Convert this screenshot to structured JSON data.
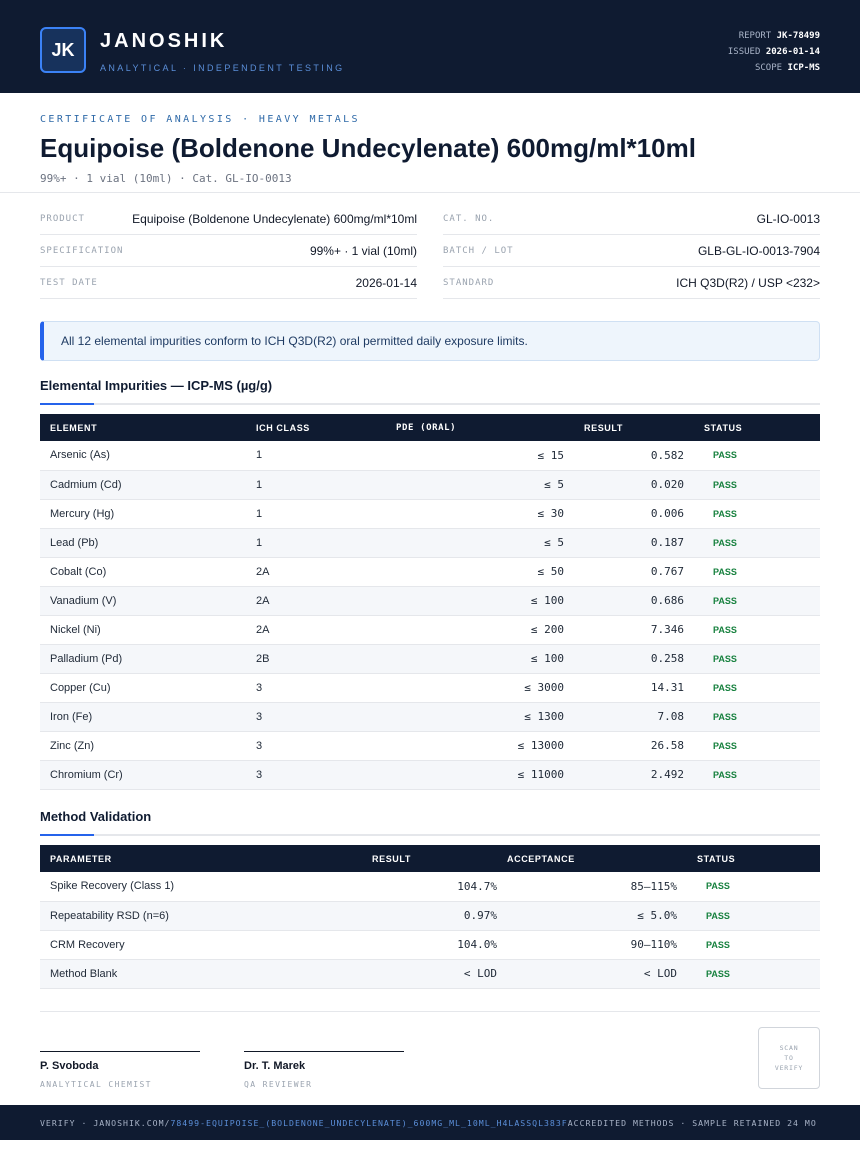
{
  "header": {
    "logo": "JK",
    "brand": "JANOSHIK",
    "tagline": "ANALYTICAL · INDEPENDENT TESTING",
    "report_label": "REPORT",
    "report_value": "JK-78499",
    "issued_label": "ISSUED",
    "issued_value": "2026-01-14",
    "scope_label": "SCOPE",
    "scope_value": "ICP-MS"
  },
  "doc": {
    "eyebrow": "CERTIFICATE OF ANALYSIS · HEAVY METALS",
    "title": "Equipoise (Boldenone Undecylenate) 600mg/ml*10ml",
    "subtitle": "99%+ · 1 vial (10ml)  ·  Cat. GL-IO-0013"
  },
  "info_left": [
    {
      "label": "PRODUCT",
      "value": "Equipoise (Boldenone Undecylenate) 600mg/ml*10ml"
    },
    {
      "label": "SPECIFICATION",
      "value": "99%+ · 1 vial (10ml)"
    },
    {
      "label": "TEST DATE",
      "value": "2026-01-14"
    }
  ],
  "info_right": [
    {
      "label": "CAT. NO.",
      "value": "GL-IO-0013"
    },
    {
      "label": "BATCH / LOT",
      "value": "GLB-GL-IO-0013-7904"
    },
    {
      "label": "STANDARD",
      "value": "ICH Q3D(R2) / USP <232>"
    }
  ],
  "notice": "All 12 elemental impurities conform to ICH Q3D(R2) oral permitted daily exposure limits.",
  "impurities": {
    "heading": "Elemental Impurities — ICP-MS (µg/g)",
    "columns": [
      "ELEMENT",
      "ICH CLASS",
      "PDE (ORAL)",
      "RESULT",
      "STATUS"
    ],
    "rows": [
      {
        "element": "Arsenic (As)",
        "class": "1",
        "pde": "≤ 15",
        "result": "0.582",
        "status": "PASS"
      },
      {
        "element": "Cadmium (Cd)",
        "class": "1",
        "pde": "≤ 5",
        "result": "0.020",
        "status": "PASS"
      },
      {
        "element": "Mercury (Hg)",
        "class": "1",
        "pde": "≤ 30",
        "result": "0.006",
        "status": "PASS"
      },
      {
        "element": "Lead (Pb)",
        "class": "1",
        "pde": "≤ 5",
        "result": "0.187",
        "status": "PASS"
      },
      {
        "element": "Cobalt (Co)",
        "class": "2A",
        "pde": "≤ 50",
        "result": "0.767",
        "status": "PASS"
      },
      {
        "element": "Vanadium (V)",
        "class": "2A",
        "pde": "≤ 100",
        "result": "0.686",
        "status": "PASS"
      },
      {
        "element": "Nickel (Ni)",
        "class": "2A",
        "pde": "≤ 200",
        "result": "7.346",
        "status": "PASS"
      },
      {
        "element": "Palladium (Pd)",
        "class": "2B",
        "pde": "≤ 100",
        "result": "0.258",
        "status": "PASS"
      },
      {
        "element": "Copper (Cu)",
        "class": "3",
        "pde": "≤ 3000",
        "result": "14.31",
        "status": "PASS"
      },
      {
        "element": "Iron (Fe)",
        "class": "3",
        "pde": "≤ 1300",
        "result": "7.08",
        "status": "PASS"
      },
      {
        "element": "Zinc (Zn)",
        "class": "3",
        "pde": "≤ 13000",
        "result": "26.58",
        "status": "PASS"
      },
      {
        "element": "Chromium (Cr)",
        "class": "3",
        "pde": "≤ 11000",
        "result": "2.492",
        "status": "PASS"
      }
    ]
  },
  "validation": {
    "heading": "Method Validation",
    "columns": [
      "PARAMETER",
      "RESULT",
      "ACCEPTANCE",
      "STATUS"
    ],
    "rows": [
      {
        "parameter": "Spike Recovery (Class 1)",
        "result": "104.7%",
        "acceptance": "85–115%",
        "status": "PASS"
      },
      {
        "parameter": "Repeatability RSD (n=6)",
        "result": "0.97%",
        "acceptance": "≤ 5.0%",
        "status": "PASS"
      },
      {
        "parameter": "CRM Recovery",
        "result": "104.0%",
        "acceptance": "90–110%",
        "status": "PASS"
      },
      {
        "parameter": "Method Blank",
        "result": "< LOD",
        "acceptance": "< LOD",
        "status": "PASS"
      }
    ]
  },
  "signatures": [
    {
      "name": "P. Svoboda",
      "role": "ANALYTICAL CHEMIST"
    },
    {
      "name": "Dr. T. Marek",
      "role": "QA REVIEWER"
    }
  ],
  "qr": {
    "line1": "SCAN",
    "line2": "TO",
    "line3": "VERIFY"
  },
  "footer": {
    "prefix": "VERIFY · JANOSHIK.COM/",
    "link": "78499-EQUIPOISE_(BOLDENONE_UNDECYLENATE)_600MG_ML_10ML_H4LASSQL383F",
    "suffix": " ACCREDITED METHODS · SAMPLE RETAINED 24 MO"
  }
}
